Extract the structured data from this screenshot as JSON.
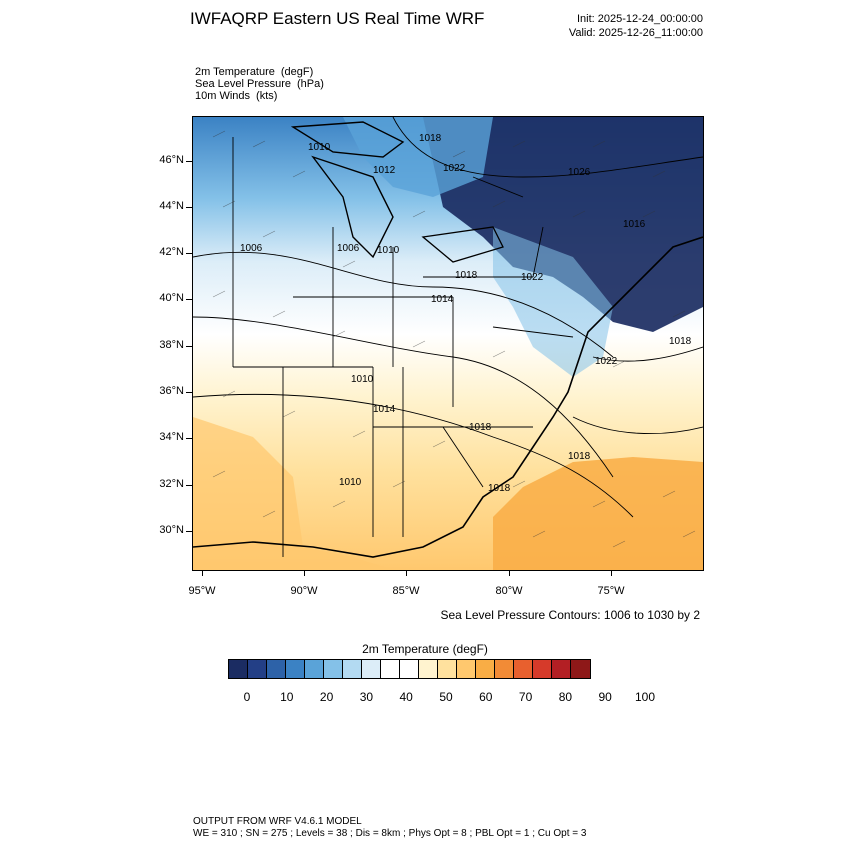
{
  "header": {
    "title": "IWFAQRP Eastern US Real Time WRF",
    "init_time": "Init: 2025-12-24_00:00:00",
    "valid_time": "Valid: 2025-12-26_11:00:00"
  },
  "fields": [
    {
      "name": "2m Temperature",
      "unit": "(degF)"
    },
    {
      "name": "Sea Level Pressure",
      "unit": "(hPa)"
    },
    {
      "name": "10m Winds",
      "unit": "(kts)"
    }
  ],
  "map": {
    "lat_labels": [
      "46°N",
      "44°N",
      "42°N",
      "40°N",
      "38°N",
      "36°N",
      "34°N",
      "32°N",
      "30°N"
    ],
    "lon_labels": [
      "95°W",
      "90°W",
      "85°W",
      "80°W",
      "75°W"
    ],
    "contour_labels": [
      "1010",
      "1018",
      "1022",
      "1012",
      "1026",
      "1006",
      "1006",
      "1010",
      "1018",
      "1022",
      "1014",
      "1018",
      "1022",
      "1010",
      "1014",
      "1018",
      "1018",
      "1018",
      "1010",
      "1016"
    ],
    "contour_note": "Sea Level Pressure Contours: 1006 to 1030 by 2"
  },
  "colorbar": {
    "title": "2m Temperature  (degF)",
    "colors": [
      "#1b2c62",
      "#233f86",
      "#2d62a8",
      "#3b82c4",
      "#5aa3d8",
      "#84c1e8",
      "#b3daf2",
      "#dcedf8",
      "#ffffff",
      "#ffffff",
      "#fff3cf",
      "#ffe19e",
      "#ffc86e",
      "#f9ad45",
      "#f28b36",
      "#e8602e",
      "#d63a2a",
      "#b31f24",
      "#8e1818"
    ],
    "tick_labels": [
      "0",
      "10",
      "20",
      "30",
      "40",
      "50",
      "60",
      "70",
      "80",
      "90",
      "100"
    ]
  },
  "footer": {
    "line1": "OUTPUT FROM WRF V4.6.1 MODEL",
    "line2": "WE = 310 ; SN = 275 ; Levels = 38 ; Dis = 8km ; Phys Opt = 8 ; PBL Opt = 1 ; Cu Opt = 3"
  }
}
